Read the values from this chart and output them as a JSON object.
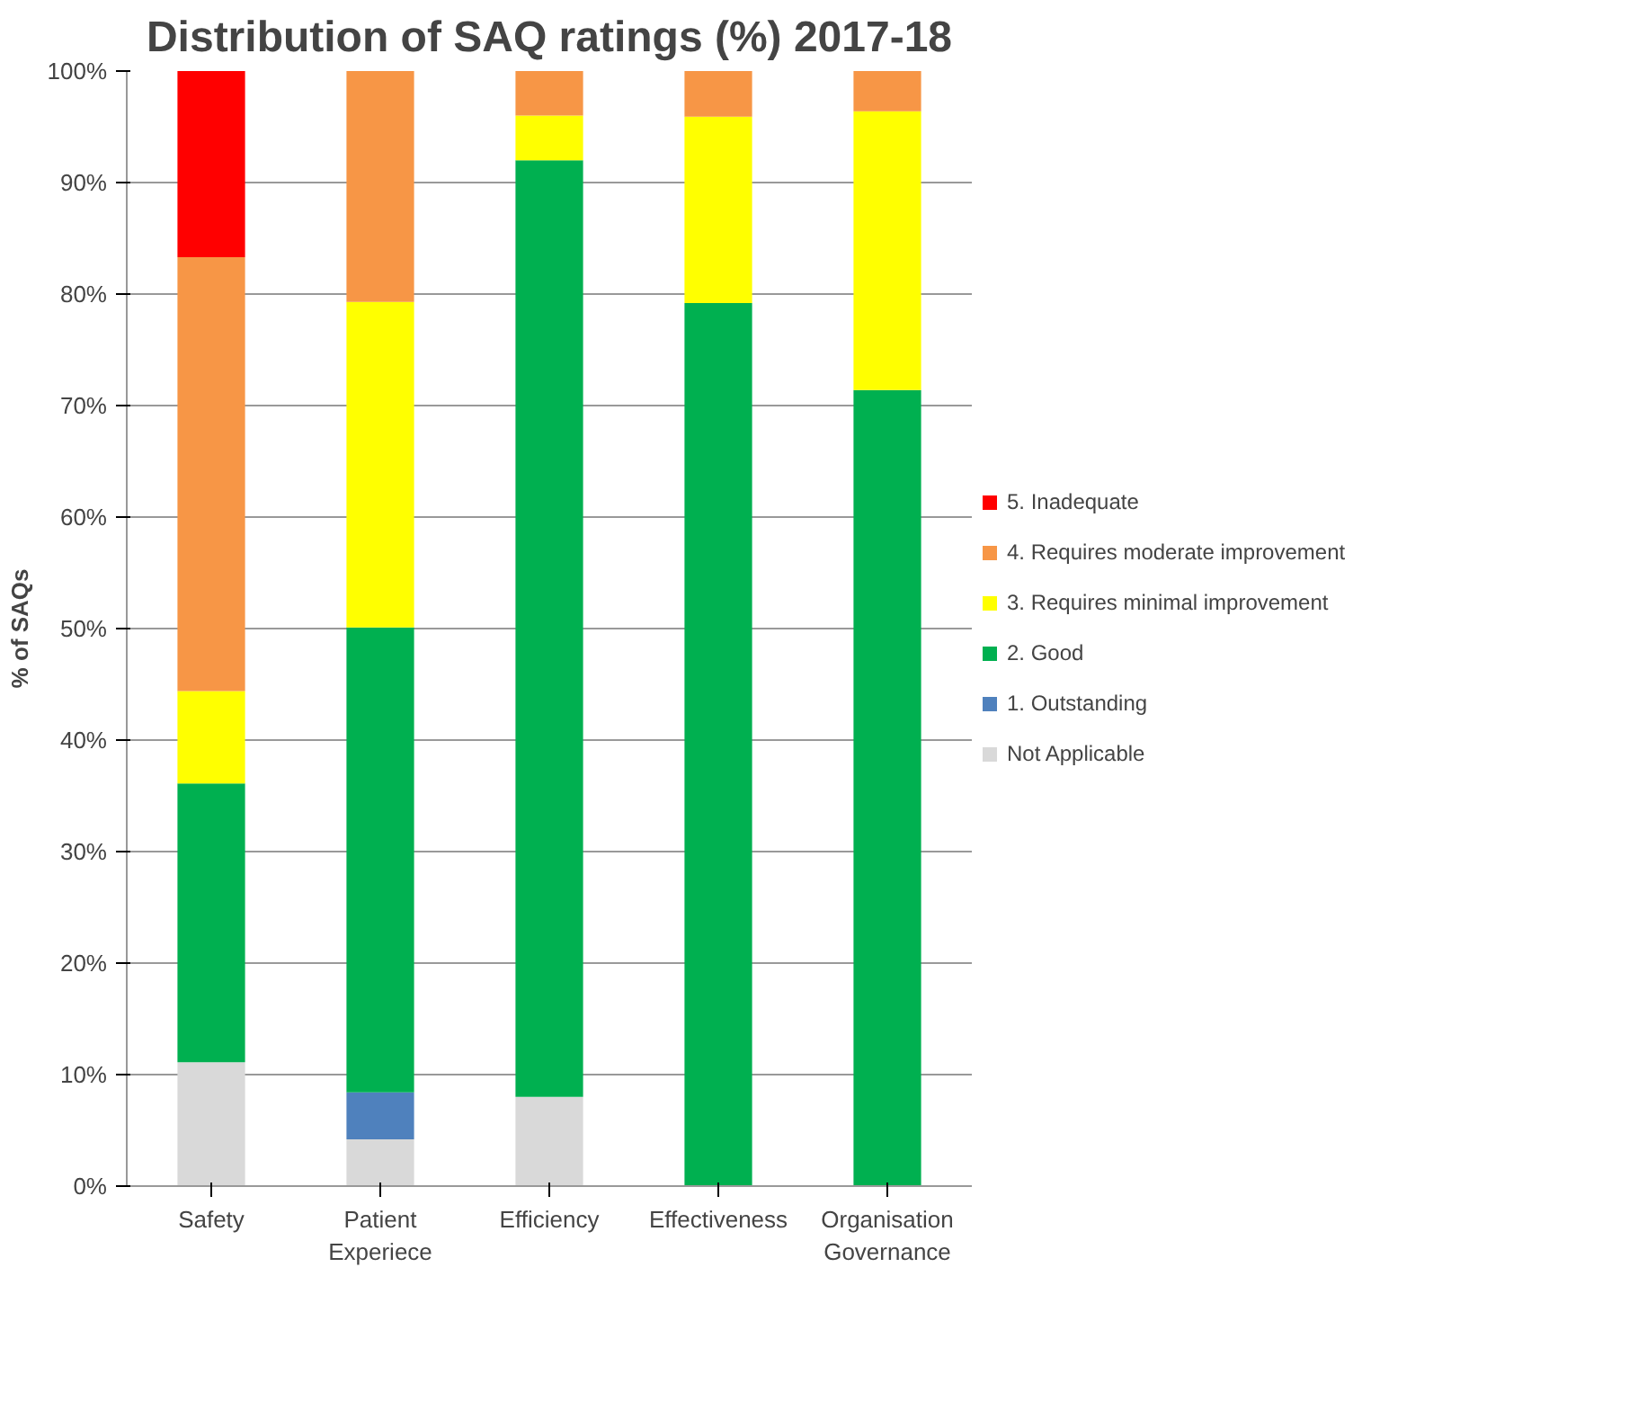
{
  "chart_data": {
    "type": "bar",
    "stacked": true,
    "title": "Distribution of SAQ ratings (%) 2017-18",
    "ylabel": "% of SAQs",
    "categories": [
      "Safety",
      "Patient Experiece",
      "Efficiency",
      "Effectiveness",
      "Organisation Governance"
    ],
    "series": [
      {
        "name": "Not Applicable",
        "color": "#d9d9d9",
        "values": [
          11.1,
          4.2,
          8.0,
          null,
          null
        ]
      },
      {
        "name": "1. Outstanding",
        "color": "#4f81bd",
        "values": [
          null,
          4.2,
          null,
          null,
          null
        ]
      },
      {
        "name": "2. Good",
        "color": "#00b050",
        "values": [
          25.0,
          41.7,
          84.0,
          79.2,
          71.4
        ]
      },
      {
        "name": "3. Requires minimal improvement",
        "color": "#ffff00",
        "values": [
          8.3,
          29.2,
          4.0,
          16.7,
          25.0
        ]
      },
      {
        "name": "4. Requires moderate improvement",
        "color": "#f79646",
        "values": [
          38.9,
          20.8,
          4.0,
          4.2,
          3.6
        ]
      },
      {
        "name": "5. Inadequate",
        "color": "#ff0000",
        "values": [
          16.7,
          null,
          null,
          null,
          null
        ]
      }
    ],
    "ylim": [
      0,
      100
    ],
    "yticks": [
      {
        "value": 0,
        "label": "0%"
      },
      {
        "value": 10,
        "label": "10%"
      },
      {
        "value": 20,
        "label": "20%"
      },
      {
        "value": 30,
        "label": "30%"
      },
      {
        "value": 40,
        "label": "40%"
      },
      {
        "value": 50,
        "label": "50%"
      },
      {
        "value": 60,
        "label": "60%"
      },
      {
        "value": 70,
        "label": "70%"
      },
      {
        "value": 80,
        "label": "80%"
      },
      {
        "value": 90,
        "label": "90%"
      },
      {
        "value": 100,
        "label": "100%"
      }
    ],
    "grid": "y",
    "legend": "right"
  }
}
